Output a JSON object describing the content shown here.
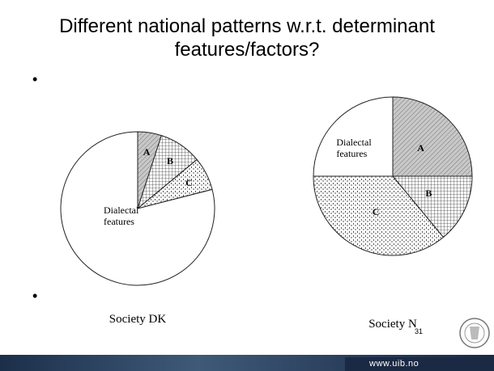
{
  "title": "Different national patterns w.r.t. determinant features/factors?",
  "bullets": [
    "•",
    "•"
  ],
  "page_number": "31",
  "url": "www.uib.no",
  "chart_data": [
    {
      "type": "pie",
      "caption": "Society DK",
      "categories": [
        "A",
        "B",
        "C",
        "Dialectal features"
      ],
      "values": [
        5,
        9,
        7,
        79
      ]
    },
    {
      "type": "pie",
      "caption": "Society N",
      "categories": [
        "A",
        "B",
        "C",
        "Dialectal features"
      ],
      "values": [
        25,
        14,
        36,
        25
      ]
    }
  ]
}
